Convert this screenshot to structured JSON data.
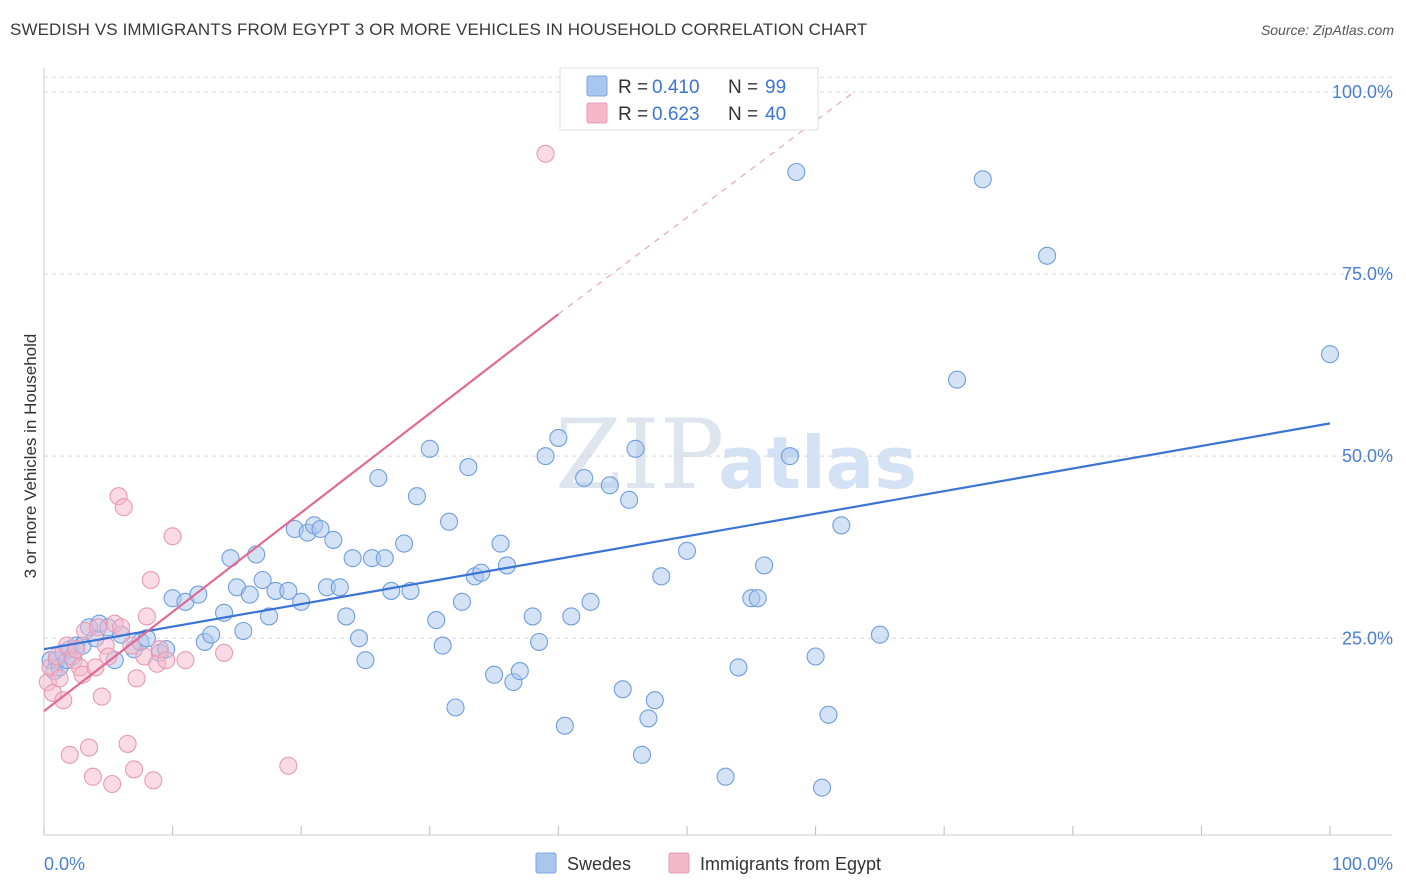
{
  "title": "SWEDISH VS IMMIGRANTS FROM EGYPT 3 OR MORE VEHICLES IN HOUSEHOLD CORRELATION CHART",
  "source": "Source: ZipAtlas.com",
  "watermark": {
    "part1": "ZIP",
    "part2": "atlas"
  },
  "colors": {
    "blue": "#3b74d4",
    "blue_fill": "#a9c6ee",
    "pink": "#e06a92",
    "pink_fill": "#f5b8cb",
    "grid": "#d8d8d8",
    "tick_text": "#4a7fcf"
  },
  "legend": {
    "rows": [
      {
        "r_label": "R = ",
        "r_value": "0.410",
        "n_label": "N = ",
        "n_value": "99"
      },
      {
        "r_label": "R = ",
        "r_value": "0.623",
        "n_label": "N = ",
        "n_value": "40"
      }
    ]
  },
  "bottom_legend": [
    "Swedes",
    "Immigrants from Egypt"
  ],
  "chart_data": {
    "type": "scatter",
    "title": "SWEDISH VS IMMIGRANTS FROM EGYPT 3 OR MORE VEHICLES IN HOUSEHOLD CORRELATION CHART",
    "xlabel": "",
    "ylabel": "3 or more Vehicles in Household",
    "xlim": [
      0,
      100
    ],
    "ylim": [
      -2,
      103
    ],
    "x_tick_labels": [
      "0.0%",
      "100.0%"
    ],
    "y_ticks": [
      {
        "value": 25,
        "label": "25.0%"
      },
      {
        "value": 50,
        "label": "50.0%"
      },
      {
        "value": 75,
        "label": "75.0%"
      },
      {
        "value": 100,
        "label": "100.0%"
      }
    ],
    "grid": true,
    "series": [
      {
        "name": "Swedes",
        "R": 0.41,
        "N": 99,
        "trend": {
          "x0": 0,
          "y0": 23.5,
          "x1": 100,
          "y1": 54.5
        },
        "points": [
          [
            0.5,
            22
          ],
          [
            0.8,
            20.5
          ],
          [
            1,
            22
          ],
          [
            1.2,
            21
          ],
          [
            1.5,
            23
          ],
          [
            1.8,
            22
          ],
          [
            2,
            23.5
          ],
          [
            2.2,
            22.5
          ],
          [
            2.5,
            24
          ],
          [
            3,
            24
          ],
          [
            3.5,
            26.5
          ],
          [
            4,
            25
          ],
          [
            4.3,
            27
          ],
          [
            5,
            26.5
          ],
          [
            5.5,
            22
          ],
          [
            6,
            25.5
          ],
          [
            7,
            23.5
          ],
          [
            7.5,
            24.5
          ],
          [
            8,
            25
          ],
          [
            9,
            23
          ],
          [
            9.5,
            23.5
          ],
          [
            10,
            30.5
          ],
          [
            11,
            30
          ],
          [
            12,
            31
          ],
          [
            12.5,
            24.5
          ],
          [
            13,
            25.5
          ],
          [
            14,
            28.5
          ],
          [
            14.5,
            36
          ],
          [
            15,
            32
          ],
          [
            15.5,
            26
          ],
          [
            16,
            31
          ],
          [
            16.5,
            36.5
          ],
          [
            17,
            33
          ],
          [
            17.5,
            28
          ],
          [
            18,
            31.5
          ],
          [
            19,
            31.5
          ],
          [
            19.5,
            40
          ],
          [
            20,
            30
          ],
          [
            20.5,
            39.5
          ],
          [
            21,
            40.5
          ],
          [
            21.5,
            40
          ],
          [
            22,
            32
          ],
          [
            22.5,
            38.5
          ],
          [
            23,
            32
          ],
          [
            23.5,
            28
          ],
          [
            24,
            36
          ],
          [
            24.5,
            25
          ],
          [
            25,
            22
          ],
          [
            25.5,
            36
          ],
          [
            26,
            47
          ],
          [
            26.5,
            36
          ],
          [
            27,
            31.5
          ],
          [
            28,
            38
          ],
          [
            28.5,
            31.5
          ],
          [
            29,
            44.5
          ],
          [
            30,
            51
          ],
          [
            30.5,
            27.5
          ],
          [
            31,
            24
          ],
          [
            31.5,
            41
          ],
          [
            32,
            15.5
          ],
          [
            32.5,
            30
          ],
          [
            33,
            48.5
          ],
          [
            33.5,
            33.5
          ],
          [
            34,
            34
          ],
          [
            35,
            20
          ],
          [
            35.5,
            38
          ],
          [
            36,
            35
          ],
          [
            36.5,
            19
          ],
          [
            37,
            20.5
          ],
          [
            38,
            28
          ],
          [
            38.5,
            24.5
          ],
          [
            39,
            50
          ],
          [
            40,
            52.5
          ],
          [
            40.5,
            13
          ],
          [
            41,
            28
          ],
          [
            42,
            47
          ],
          [
            42.5,
            30
          ],
          [
            44,
            46
          ],
          [
            45,
            18
          ],
          [
            45.5,
            44
          ],
          [
            46,
            51
          ],
          [
            46.5,
            9
          ],
          [
            47,
            14
          ],
          [
            47.5,
            16.5
          ],
          [
            48,
            33.5
          ],
          [
            50,
            37
          ],
          [
            53,
            6
          ],
          [
            54,
            21
          ],
          [
            55,
            30.5
          ],
          [
            55.5,
            30.5
          ],
          [
            56,
            35
          ],
          [
            58,
            50
          ],
          [
            58.5,
            89
          ],
          [
            60,
            22.5
          ],
          [
            60.5,
            4.5
          ],
          [
            61,
            14.5
          ],
          [
            62,
            40.5
          ],
          [
            65,
            25.5
          ],
          [
            71,
            60.5
          ],
          [
            73,
            88
          ],
          [
            78,
            77.5
          ],
          [
            100,
            64
          ]
        ]
      },
      {
        "name": "Immigrants from Egypt",
        "R": 0.623,
        "N": 40,
        "trend": {
          "x0": 0,
          "y0": 15,
          "x1": 40,
          "y1": 69.5
        },
        "trend_dashed": {
          "x0": 40,
          "y0": 69.5,
          "x1": 63,
          "y1": 100
        },
        "points": [
          [
            0.3,
            19
          ],
          [
            0.5,
            21
          ],
          [
            0.7,
            17.5
          ],
          [
            1,
            22.5
          ],
          [
            1.2,
            19.5
          ],
          [
            1.5,
            16.5
          ],
          [
            1.8,
            24
          ],
          [
            2,
            9
          ],
          [
            2.3,
            22
          ],
          [
            2.5,
            23.5
          ],
          [
            2.8,
            21
          ],
          [
            3,
            20
          ],
          [
            3.2,
            26
          ],
          [
            3.5,
            10
          ],
          [
            3.8,
            6
          ],
          [
            4,
            21
          ],
          [
            4.2,
            26.5
          ],
          [
            4.5,
            17
          ],
          [
            4.8,
            24
          ],
          [
            5,
            22.5
          ],
          [
            5.3,
            5
          ],
          [
            5.5,
            27
          ],
          [
            5.8,
            44.5
          ],
          [
            6,
            26.5
          ],
          [
            6.2,
            43
          ],
          [
            6.5,
            10.5
          ],
          [
            6.8,
            24
          ],
          [
            7,
            7
          ],
          [
            7.2,
            19.5
          ],
          [
            7.8,
            22.5
          ],
          [
            8,
            28
          ],
          [
            8.3,
            33
          ],
          [
            8.5,
            5.5
          ],
          [
            8.8,
            21.5
          ],
          [
            9,
            23.5
          ],
          [
            9.5,
            22
          ],
          [
            10,
            39
          ],
          [
            11,
            22
          ],
          [
            14,
            23
          ],
          [
            19,
            7.5
          ],
          [
            39,
            91.5
          ]
        ]
      }
    ]
  }
}
